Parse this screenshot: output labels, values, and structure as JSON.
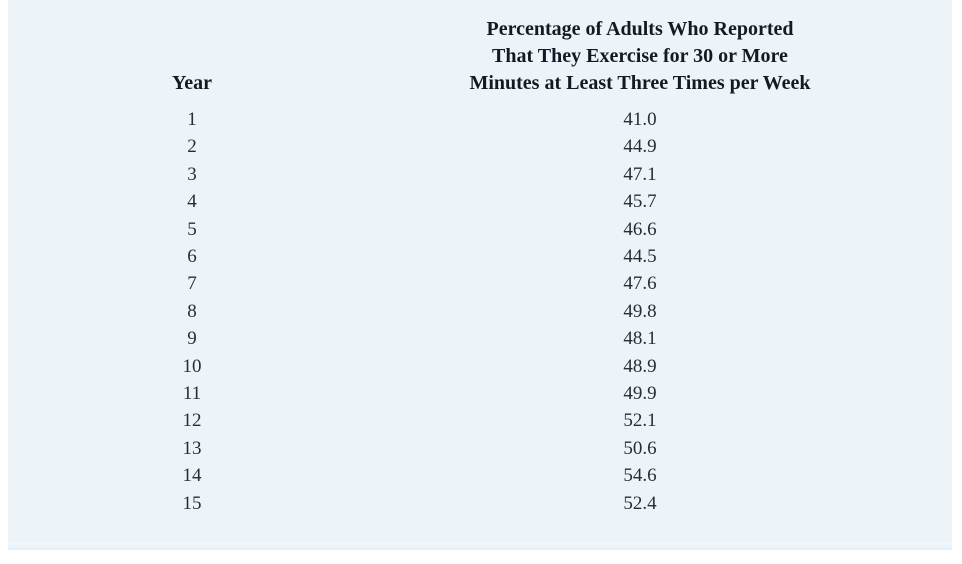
{
  "colors": {
    "panel_bg": "#ecf3f9",
    "header_text": "#131a24",
    "body_text": "#272d38",
    "page_bg": "#ffffff"
  },
  "table": {
    "year_header": "Year",
    "pct_header_lines": [
      "Percentage of Adults Who Reported",
      "That They Exercise for 30 or More",
      "Minutes at Least Three Times per Week"
    ],
    "rows": [
      {
        "year": "1",
        "pct": "41.0"
      },
      {
        "year": "2",
        "pct": "44.9"
      },
      {
        "year": "3",
        "pct": "47.1"
      },
      {
        "year": "4",
        "pct": "45.7"
      },
      {
        "year": "5",
        "pct": "46.6"
      },
      {
        "year": "6",
        "pct": "44.5"
      },
      {
        "year": "7",
        "pct": "47.6"
      },
      {
        "year": "8",
        "pct": "49.8"
      },
      {
        "year": "9",
        "pct": "48.1"
      },
      {
        "year": "10",
        "pct": "48.9"
      },
      {
        "year": "11",
        "pct": "49.9"
      },
      {
        "year": "12",
        "pct": "52.1"
      },
      {
        "year": "13",
        "pct": "50.6"
      },
      {
        "year": "14",
        "pct": "54.6"
      },
      {
        "year": "15",
        "pct": "52.4"
      }
    ]
  },
  "chart_data": {
    "type": "table",
    "title": "Percentage of Adults Who Reported That They Exercise for 30 or More Minutes at Least Three Times per Week",
    "columns": [
      "Year",
      "Percentage of Adults Who Reported That They Exercise for 30 or More Minutes at Least Three Times per Week"
    ],
    "x": [
      1,
      2,
      3,
      4,
      5,
      6,
      7,
      8,
      9,
      10,
      11,
      12,
      13,
      14,
      15
    ],
    "values": [
      41.0,
      44.9,
      47.1,
      45.7,
      46.6,
      44.5,
      47.6,
      49.8,
      48.1,
      48.9,
      49.9,
      52.1,
      50.6,
      54.6,
      52.4
    ]
  }
}
